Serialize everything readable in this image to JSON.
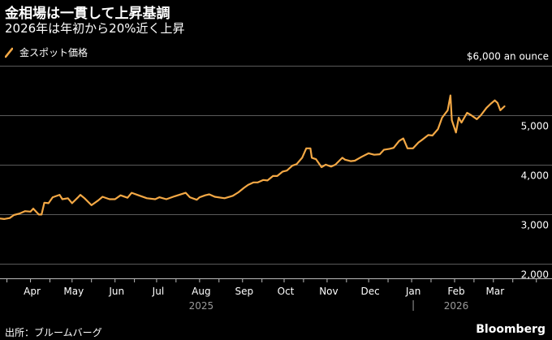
{
  "header": {
    "title": "金相場は一貫して上昇基調",
    "subtitle": "2026年は年初から20%近く上昇"
  },
  "legend": {
    "label": "金スポット価格",
    "color": "#f3a845"
  },
  "footer": {
    "source": "出所：ブルームバーグ",
    "brand": "Bloomberg"
  },
  "chart_data": {
    "type": "line",
    "unit_label": "$6,000 an ounce",
    "ylim": [
      1700,
      6100
    ],
    "yticks": [
      {
        "value": 6000,
        "label": ""
      },
      {
        "value": 5000,
        "label": "5,000"
      },
      {
        "value": 4000,
        "label": "4,000"
      },
      {
        "value": 3000,
        "label": "3,000"
      },
      {
        "value": 2000,
        "label": "2,000"
      }
    ],
    "xlim": [
      "2025-03-10",
      "2026-03-14"
    ],
    "xticks": [
      {
        "date": "2025-04-01",
        "label": "Apr"
      },
      {
        "date": "2025-05-01",
        "label": "May"
      },
      {
        "date": "2025-06-01",
        "label": "Jun"
      },
      {
        "date": "2025-07-01",
        "label": "Jul"
      },
      {
        "date": "2025-08-01",
        "label": "Aug"
      },
      {
        "date": "2025-09-01",
        "label": "Sep"
      },
      {
        "date": "2025-10-01",
        "label": "Oct"
      },
      {
        "date": "2025-11-01",
        "label": "Nov"
      },
      {
        "date": "2025-12-01",
        "label": "Dec"
      },
      {
        "date": "2026-01-01",
        "label": "Jan"
      },
      {
        "date": "2026-02-01",
        "label": "Feb"
      },
      {
        "date": "2026-03-01",
        "label": "Mar"
      }
    ],
    "year_labels": [
      {
        "date": "2025-08-01",
        "label": "2025"
      },
      {
        "date": "2026-02-01",
        "label": "2026"
      }
    ],
    "year_divider": "2026-01-01",
    "grid": true,
    "legend_position": "top-left",
    "series": [
      {
        "name": "金スポット価格",
        "points": [
          [
            "2025-03-10",
            2910
          ],
          [
            "2025-03-13",
            2900
          ],
          [
            "2025-03-17",
            2920
          ],
          [
            "2025-03-20",
            2980
          ],
          [
            "2025-03-24",
            3010
          ],
          [
            "2025-03-28",
            3060
          ],
          [
            "2025-04-01",
            3050
          ],
          [
            "2025-04-03",
            3110
          ],
          [
            "2025-04-07",
            2990
          ],
          [
            "2025-04-09",
            2990
          ],
          [
            "2025-04-11",
            3230
          ],
          [
            "2025-04-14",
            3220
          ],
          [
            "2025-04-17",
            3340
          ],
          [
            "2025-04-22",
            3390
          ],
          [
            "2025-04-24",
            3300
          ],
          [
            "2025-04-28",
            3320
          ],
          [
            "2025-05-01",
            3220
          ],
          [
            "2025-05-05",
            3330
          ],
          [
            "2025-05-07",
            3390
          ],
          [
            "2025-05-10",
            3320
          ],
          [
            "2025-05-15",
            3180
          ],
          [
            "2025-05-20",
            3280
          ],
          [
            "2025-05-23",
            3350
          ],
          [
            "2025-05-28",
            3300
          ],
          [
            "2025-06-01",
            3300
          ],
          [
            "2025-06-05",
            3380
          ],
          [
            "2025-06-10",
            3330
          ],
          [
            "2025-06-13",
            3430
          ],
          [
            "2025-06-18",
            3380
          ],
          [
            "2025-06-24",
            3320
          ],
          [
            "2025-06-30",
            3300
          ],
          [
            "2025-07-03",
            3340
          ],
          [
            "2025-07-08",
            3300
          ],
          [
            "2025-07-14",
            3360
          ],
          [
            "2025-07-22",
            3430
          ],
          [
            "2025-07-25",
            3340
          ],
          [
            "2025-07-30",
            3290
          ],
          [
            "2025-08-01",
            3340
          ],
          [
            "2025-08-05",
            3380
          ],
          [
            "2025-08-08",
            3400
          ],
          [
            "2025-08-12",
            3350
          ],
          [
            "2025-08-19",
            3320
          ],
          [
            "2025-08-25",
            3370
          ],
          [
            "2025-08-29",
            3440
          ],
          [
            "2025-09-02",
            3530
          ],
          [
            "2025-09-05",
            3590
          ],
          [
            "2025-09-09",
            3640
          ],
          [
            "2025-09-12",
            3640
          ],
          [
            "2025-09-16",
            3690
          ],
          [
            "2025-09-19",
            3680
          ],
          [
            "2025-09-23",
            3770
          ],
          [
            "2025-09-26",
            3770
          ],
          [
            "2025-09-30",
            3860
          ],
          [
            "2025-10-03",
            3880
          ],
          [
            "2025-10-07",
            3980
          ],
          [
            "2025-10-10",
            4010
          ],
          [
            "2025-10-14",
            4140
          ],
          [
            "2025-10-17",
            4330
          ],
          [
            "2025-10-20",
            4330
          ],
          [
            "2025-10-21",
            4140
          ],
          [
            "2025-10-24",
            4110
          ],
          [
            "2025-10-28",
            3950
          ],
          [
            "2025-10-31",
            4000
          ],
          [
            "2025-11-04",
            3960
          ],
          [
            "2025-11-07",
            4000
          ],
          [
            "2025-11-12",
            4140
          ],
          [
            "2025-11-14",
            4100
          ],
          [
            "2025-11-18",
            4070
          ],
          [
            "2025-11-21",
            4080
          ],
          [
            "2025-11-26",
            4160
          ],
          [
            "2025-12-01",
            4230
          ],
          [
            "2025-12-05",
            4200
          ],
          [
            "2025-12-09",
            4210
          ],
          [
            "2025-12-12",
            4300
          ],
          [
            "2025-12-16",
            4320
          ],
          [
            "2025-12-19",
            4340
          ],
          [
            "2025-12-23",
            4480
          ],
          [
            "2025-12-26",
            4530
          ],
          [
            "2025-12-29",
            4330
          ],
          [
            "2026-01-02",
            4330
          ],
          [
            "2026-01-06",
            4450
          ],
          [
            "2026-01-09",
            4510
          ],
          [
            "2026-01-13",
            4600
          ],
          [
            "2026-01-16",
            4590
          ],
          [
            "2026-01-20",
            4720
          ],
          [
            "2026-01-23",
            4950
          ],
          [
            "2026-01-27",
            5100
          ],
          [
            "2026-01-29",
            5400
          ],
          [
            "2026-01-30",
            4900
          ],
          [
            "2026-02-02",
            4650
          ],
          [
            "2026-02-04",
            4950
          ],
          [
            "2026-02-06",
            4850
          ],
          [
            "2026-02-10",
            5050
          ],
          [
            "2026-02-13",
            5000
          ],
          [
            "2026-02-17",
            4920
          ],
          [
            "2026-02-20",
            5000
          ],
          [
            "2026-02-24",
            5150
          ],
          [
            "2026-02-27",
            5230
          ],
          [
            "2026-03-02",
            5300
          ],
          [
            "2026-03-04",
            5250
          ],
          [
            "2026-03-06",
            5100
          ],
          [
            "2026-03-09",
            5180
          ]
        ]
      }
    ]
  }
}
